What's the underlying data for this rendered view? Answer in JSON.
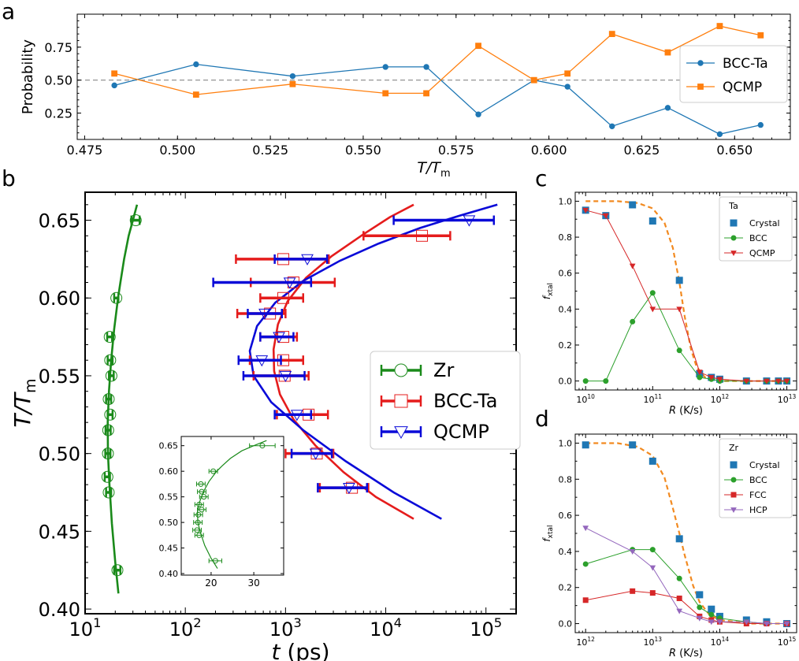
{
  "figure_labels": {
    "a": "a",
    "b": "b",
    "c": "c",
    "d": "d"
  },
  "colors": {
    "blue": "#1f77b4",
    "orange": "#ff7f0e",
    "green": "#2ca02c",
    "red": "#d62728",
    "purple": "#9467bd",
    "zr_green": "#1a8a1a",
    "ta_red": "#e51c1c",
    "qcmp_blue": "#0a0ad8",
    "dashed_orange": "#f28a20"
  },
  "chart_data": [
    {
      "id": "a",
      "type": "line",
      "xlabel": "T/T",
      "xlabel_sub": "m",
      "ylabel": "Probability",
      "xlim": [
        0.473,
        0.665
      ],
      "ylim": [
        0.05,
        1.0
      ],
      "xticks": [
        "0.475",
        "0.500",
        "0.525",
        "0.550",
        "0.575",
        "0.600",
        "0.625",
        "0.650"
      ],
      "yticks": [
        "0.25",
        "0.50",
        "0.75"
      ],
      "hline": 0.5,
      "legend_position": "right",
      "series": [
        {
          "name": "BCC-Ta",
          "x": [
            0.483,
            0.505,
            0.531,
            0.556,
            0.567,
            0.581,
            0.596,
            0.605,
            0.617,
            0.632,
            0.646,
            0.657
          ],
          "y": [
            0.46,
            0.62,
            0.53,
            0.6,
            0.6,
            0.24,
            0.5,
            0.45,
            0.15,
            0.29,
            0.09,
            0.16
          ]
        },
        {
          "name": "QCMP",
          "x": [
            0.483,
            0.505,
            0.531,
            0.556,
            0.567,
            0.581,
            0.596,
            0.605,
            0.617,
            0.632,
            0.646,
            0.657
          ],
          "y": [
            0.55,
            0.39,
            0.47,
            0.4,
            0.4,
            0.76,
            0.5,
            0.55,
            0.85,
            0.71,
            0.91,
            0.84
          ]
        }
      ]
    },
    {
      "id": "b",
      "type": "scatter",
      "xlabel": "t",
      "xlabel_unit": "(ps)",
      "ylabel": "T/T",
      "ylabel_sub": "m",
      "xscale": "log",
      "xlim": [
        10,
        200000
      ],
      "ylim": [
        0.397,
        0.668
      ],
      "xticks": [
        "10",
        "10",
        "10",
        "10",
        "10"
      ],
      "xtick_exps": [
        "1",
        "2",
        "3",
        "4",
        "5"
      ],
      "yticks": [
        "0.40",
        "0.45",
        "0.50",
        "0.55",
        "0.60",
        "0.65"
      ],
      "legend_position": "center-right",
      "series": [
        {
          "name": "Zr",
          "y": [
            0.65,
            0.6,
            0.575,
            0.56,
            0.55,
            0.535,
            0.525,
            0.515,
            0.5,
            0.485,
            0.475,
            0.425
          ],
          "x": [
            32,
            20.5,
            17.6,
            17.8,
            18.3,
            17.2,
            17.8,
            17,
            16.9,
            16.7,
            17.2,
            21
          ],
          "xerr_lo": [
            29,
            19.5,
            16.6,
            16.8,
            17.3,
            16.2,
            16.8,
            16,
            15.9,
            15.7,
            16.2,
            19.5
          ],
          "xerr_hi": [
            35,
            21.5,
            18.6,
            18.8,
            19.3,
            18.2,
            18.8,
            18,
            17.9,
            17.7,
            18.2,
            22.5
          ]
        },
        {
          "name": "BCC-Ta",
          "y": [
            0.64,
            0.625,
            0.61,
            0.6,
            0.59,
            0.575,
            0.56,
            0.55,
            0.525,
            0.5,
            0.478
          ],
          "x": [
            23000,
            950,
            1200,
            950,
            700,
            950,
            950,
            980,
            1700,
            2050,
            4600
          ],
          "xerr_lo": [
            6000,
            320,
            450,
            560,
            330,
            560,
            440,
            480,
            820,
            1000,
            2200
          ],
          "xerr_hi": [
            44000,
            2700,
            3100,
            1500,
            1000,
            1300,
            1500,
            1700,
            2650,
            3000,
            6700
          ]
        },
        {
          "name": "QCMP",
          "y": [
            0.65,
            0.625,
            0.61,
            0.59,
            0.575,
            0.56,
            0.55,
            0.525,
            0.5,
            0.478
          ],
          "x": [
            68000,
            1650,
            1100,
            620,
            860,
            580,
            1000,
            1300,
            2000,
            4300
          ],
          "xerr_lo": [
            12000,
            780,
            190,
            420,
            560,
            340,
            380,
            780,
            1150,
            2100
          ],
          "xerr_hi": [
            120000,
            2600,
            1800,
            920,
            1200,
            900,
            1550,
            1800,
            2900,
            6500
          ]
        }
      ],
      "fits": [
        {
          "series": "Zr",
          "x": [
            21.5,
            20,
            18.5,
            17.5,
            16.9,
            16.8,
            17.3,
            18.2,
            19.5,
            21.3,
            22.5,
            24.5,
            27.2,
            30,
            33
          ],
          "y": [
            0.41,
            0.43,
            0.455,
            0.48,
            0.5,
            0.52,
            0.54,
            0.56,
            0.58,
            0.6,
            0.61,
            0.625,
            0.64,
            0.65,
            0.66
          ]
        },
        {
          "series": "BCC-Ta",
          "x": [
            19000,
            8000,
            3800,
            2000,
            1200,
            880,
            770,
            760,
            840,
            1050,
            1600,
            2900,
            6000,
            11000,
            19000
          ],
          "y": [
            0.458,
            0.472,
            0.488,
            0.505,
            0.522,
            0.538,
            0.553,
            0.567,
            0.583,
            0.598,
            0.613,
            0.627,
            0.641,
            0.652,
            0.66
          ]
        },
        {
          "series": "QCMP",
          "x": [
            36000,
            12000,
            4000,
            1500,
            720,
            480,
            440,
            520,
            790,
            1500,
            3500,
            8500,
            22000,
            55000,
            130000
          ],
          "y": [
            0.458,
            0.475,
            0.495,
            0.515,
            0.533,
            0.55,
            0.566,
            0.582,
            0.597,
            0.611,
            0.624,
            0.635,
            0.645,
            0.653,
            0.66
          ]
        }
      ],
      "inset": {
        "type": "scatter",
        "xlim": [
          13,
          37
        ],
        "ylim": [
          0.397,
          0.668
        ],
        "xticks": [
          "20",
          "30"
        ],
        "yticks": [
          "0.40",
          "0.45",
          "0.50",
          "0.55",
          "0.60",
          "0.65"
        ],
        "series_name": "Zr"
      }
    },
    {
      "id": "c",
      "type": "line",
      "xlabel": "R",
      "xlabel_unit": "(K/s)",
      "ylabel": "f",
      "ylabel_sub": "xtal",
      "xscale": "log",
      "xlim": [
        7000000000.0,
        14000000000000.0
      ],
      "ylim": [
        -0.05,
        1.05
      ],
      "xticks": [
        "10",
        "10",
        "10",
        "10"
      ],
      "xtick_exps": [
        "10",
        "11",
        "12",
        "13"
      ],
      "yticks": [
        "0.0",
        "0.2",
        "0.4",
        "0.6",
        "0.8",
        "1.0"
      ],
      "legend_title": "Ta",
      "legend_position": "top-right",
      "series": [
        {
          "name": "Crystal",
          "marker": "square",
          "x": [
            10000000000.0,
            20000000000.0,
            50000000000.0,
            100000000000.0,
            250000000000.0,
            500000000000.0,
            750000000000.0,
            1000000000000.0,
            2500000000000.0,
            5000000000000.0,
            7500000000000.0,
            10000000000000.0
          ],
          "y": [
            0.95,
            0.92,
            0.98,
            0.89,
            0.56,
            0.04,
            0.02,
            0.01,
            0.0,
            0.0,
            0.0,
            0.0
          ]
        },
        {
          "name": "BCC",
          "marker": "circle",
          "x": [
            10000000000.0,
            20000000000.0,
            50000000000.0,
            100000000000.0,
            250000000000.0,
            500000000000.0,
            750000000000.0,
            1000000000000.0,
            2500000000000.0,
            5000000000000.0,
            7500000000000.0,
            10000000000000.0
          ],
          "y": [
            0.0,
            0.0,
            0.33,
            0.49,
            0.17,
            0.02,
            0.01,
            0.0,
            0.0,
            0.0,
            0.0,
            0.0
          ]
        },
        {
          "name": "QCMP",
          "marker": "triangle-down",
          "x": [
            10000000000.0,
            20000000000.0,
            50000000000.0,
            100000000000.0,
            250000000000.0,
            500000000000.0,
            750000000000.0,
            1000000000000.0,
            2500000000000.0,
            5000000000000.0,
            7500000000000.0,
            10000000000000.0
          ],
          "y": [
            0.95,
            0.92,
            0.64,
            0.4,
            0.4,
            0.05,
            0.02,
            0.01,
            0.0,
            0.0,
            0.0,
            0.0
          ]
        }
      ],
      "fit": {
        "x": [
          10000000000.0,
          30000000000.0,
          60000000000.0,
          100000000000.0,
          150000000000.0,
          200000000000.0,
          250000000000.0,
          300000000000.0,
          370000000000.0,
          450000000000.0,
          600000000000.0,
          1000000000000.0,
          3000000000000.0,
          10000000000000.0
        ],
        "y": [
          1.0,
          1.0,
          0.99,
          0.96,
          0.88,
          0.74,
          0.55,
          0.36,
          0.18,
          0.08,
          0.02,
          0.0,
          0.0,
          0.0
        ]
      }
    },
    {
      "id": "d",
      "type": "line",
      "xlabel": "R",
      "xlabel_unit": "(K/s)",
      "ylabel": "f",
      "ylabel_sub": "xtal",
      "xscale": "log",
      "xlim": [
        700000000000.0,
        1400000000000000.0
      ],
      "ylim": [
        -0.05,
        1.05
      ],
      "xticks": [
        "10",
        "10",
        "10",
        "10"
      ],
      "xtick_exps": [
        "12",
        "13",
        "14",
        "15"
      ],
      "yticks": [
        "0.0",
        "0.2",
        "0.4",
        "0.6",
        "0.8",
        "1.0"
      ],
      "legend_title": "Zr",
      "legend_position": "top-right",
      "series": [
        {
          "name": "Crystal",
          "marker": "square",
          "x": [
            1000000000000.0,
            5000000000000.0,
            10000000000000.0,
            25000000000000.0,
            50000000000000.0,
            75000000000000.0,
            100000000000000.0,
            250000000000000.0,
            500000000000000.0,
            1000000000000000.0
          ],
          "y": [
            0.99,
            0.99,
            0.9,
            0.47,
            0.16,
            0.08,
            0.04,
            0.02,
            0.01,
            0.0
          ]
        },
        {
          "name": "BCC",
          "marker": "circle",
          "x": [
            1000000000000.0,
            5000000000000.0,
            10000000000000.0,
            25000000000000.0,
            50000000000000.0,
            75000000000000.0,
            100000000000000.0,
            250000000000000.0,
            500000000000000.0,
            1000000000000000.0
          ],
          "y": [
            0.33,
            0.41,
            0.41,
            0.25,
            0.09,
            0.05,
            0.03,
            0.01,
            0.0,
            0.0
          ]
        },
        {
          "name": "FCC",
          "marker": "square",
          "x": [
            1000000000000.0,
            5000000000000.0,
            10000000000000.0,
            25000000000000.0,
            50000000000000.0,
            75000000000000.0,
            100000000000000.0,
            250000000000000.0,
            500000000000000.0,
            1000000000000000.0
          ],
          "y": [
            0.13,
            0.18,
            0.17,
            0.14,
            0.04,
            0.02,
            0.01,
            0.0,
            0.0,
            0.0
          ]
        },
        {
          "name": "HCP",
          "marker": "triangle-down",
          "x": [
            1000000000000.0,
            5000000000000.0,
            10000000000000.0,
            25000000000000.0,
            50000000000000.0,
            75000000000000.0,
            100000000000000.0,
            250000000000000.0,
            500000000000000.0,
            1000000000000000.0
          ],
          "y": [
            0.53,
            0.4,
            0.31,
            0.07,
            0.03,
            0.01,
            0.01,
            0.01,
            0.0,
            0.0
          ]
        }
      ],
      "fit": {
        "x": [
          1000000000000.0,
          3000000000000.0,
          6000000000000.0,
          10000000000000.0,
          15000000000000.0,
          20000000000000.0,
          25000000000000.0,
          30000000000000.0,
          40000000000000.0,
          50000000000000.0,
          70000000000000.0,
          100000000000000.0,
          300000000000000.0,
          1000000000000000.0
        ],
        "y": [
          1.0,
          1.0,
          0.98,
          0.93,
          0.81,
          0.64,
          0.5,
          0.38,
          0.21,
          0.12,
          0.05,
          0.02,
          0.0,
          0.0
        ]
      }
    }
  ]
}
